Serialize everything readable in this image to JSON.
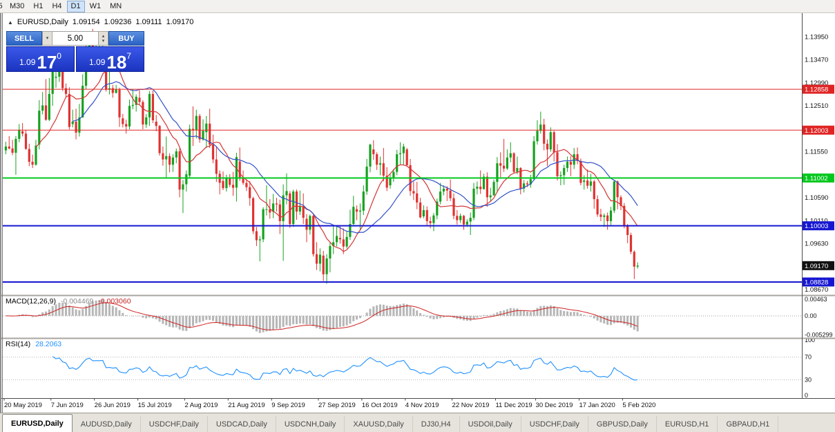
{
  "toolbar": {
    "timeframes": [
      "5",
      "M30",
      "H1",
      "H4",
      "D1",
      "W1",
      "MN"
    ],
    "active": "D1"
  },
  "header": {
    "collapse_icon": "▲",
    "symbol_period": "EURUSD,Daily",
    "open": "1.09154",
    "high": "1.09236",
    "low": "1.09111",
    "close": "1.09170"
  },
  "one_click": {
    "sell_label": "SELL",
    "buy_label": "BUY",
    "lot": "5.00",
    "bid_small": "1.09",
    "bid_big": "17",
    "bid_sup": "0",
    "ask_small": "1.09",
    "ask_big": "18",
    "ask_sup": "7"
  },
  "tabbar": {
    "active_index": 0,
    "tabs": [
      "EURUSD,Daily",
      "AUDUSD,Daily",
      "USDCHF,Daily",
      "USDCAD,Daily",
      "USDCNH,Daily",
      "XAUUSD,Daily",
      "DJ30,H4",
      "USDOil,Daily",
      "USDCHF,Daily",
      "GBPUSD,Daily",
      "EURUSD,H1",
      "GBPAUD,H1"
    ]
  },
  "chart_data": {
    "type": "candlestick",
    "symbol": "EURUSD",
    "timeframe": "Daily",
    "ylim": [
      1.0864,
      1.1442
    ],
    "up_color": "#16a120",
    "down_color": "#e03232",
    "yticks": [
      {
        "value": 1.1395,
        "label": "1.13950"
      },
      {
        "value": 1.1347,
        "label": "1.13470"
      },
      {
        "value": 1.1299,
        "label": "1.12990"
      },
      {
        "value": 1.1251,
        "label": "1.12510"
      },
      {
        "value": 1.1155,
        "label": "1.11550"
      },
      {
        "value": 1.1059,
        "label": "1.10590"
      },
      {
        "value": 1.1011,
        "label": "1.10110"
      },
      {
        "value": 1.0963,
        "label": "1.09630"
      },
      {
        "value": 1.0867,
        "label": "1.08670"
      }
    ],
    "hlines": [
      {
        "value": 1.12858,
        "label": "1.12858",
        "color": "#e02424",
        "width": 1
      },
      {
        "value": 1.12003,
        "label": "1.12003",
        "color": "#e02424",
        "width": 1
      },
      {
        "value": 1.11002,
        "label": "1.11002",
        "color": "#00c81e",
        "width": 2
      },
      {
        "value": 1.10003,
        "label": "1.10003",
        "color": "#1616d2",
        "width": 2
      },
      {
        "value": 1.08828,
        "label": "1.08828",
        "color": "#1616d2",
        "width": 2
      }
    ],
    "current_price": {
      "value": 1.0917,
      "label": "1.09170",
      "color": "#111111"
    },
    "ma": [
      {
        "period": 10,
        "color": "#d23434"
      },
      {
        "period": 21,
        "color": "#3050c8"
      }
    ],
    "x_labels": [
      {
        "text": "20 May 2019",
        "i": 0
      },
      {
        "text": "7 Jun 2019",
        "i": 14
      },
      {
        "text": "26 Jun 2019",
        "i": 27
      },
      {
        "text": "15 Jul 2019",
        "i": 40
      },
      {
        "text": "2 Aug 2019",
        "i": 54
      },
      {
        "text": "21 Aug 2019",
        "i": 67
      },
      {
        "text": "9 Sep 2019",
        "i": 80
      },
      {
        "text": "27 Sep 2019",
        "i": 94
      },
      {
        "text": "16 Oct 2019",
        "i": 107
      },
      {
        "text": "4 Nov 2019",
        "i": 120
      },
      {
        "text": "22 Nov 2019",
        "i": 134
      },
      {
        "text": "11 Dec 2019",
        "i": 147
      },
      {
        "text": "30 Dec 2019",
        "i": 159
      },
      {
        "text": "17 Jan 2020",
        "i": 172
      },
      {
        "text": "5 Feb 2020",
        "i": 185
      }
    ],
    "candles": [
      [
        1.1158,
        1.1176,
        1.115,
        1.1166
      ],
      [
        1.1166,
        1.1188,
        1.116,
        1.1162
      ],
      [
        1.1162,
        1.118,
        1.1148,
        1.1153
      ],
      [
        1.1153,
        1.1188,
        1.1107,
        1.1182
      ],
      [
        1.1182,
        1.1213,
        1.1175,
        1.1201
      ],
      [
        1.1198,
        1.1215,
        1.1187,
        1.1193
      ],
      [
        1.1193,
        1.1201,
        1.1159,
        1.1161
      ],
      [
        1.1161,
        1.1172,
        1.1125,
        1.1134
      ],
      [
        1.1134,
        1.1149,
        1.1121,
        1.1128
      ],
      [
        1.1128,
        1.118,
        1.1126,
        1.1168
      ],
      [
        1.117,
        1.1263,
        1.116,
        1.1241
      ],
      [
        1.1241,
        1.128,
        1.1233,
        1.1252
      ],
      [
        1.1252,
        1.1307,
        1.122,
        1.1222
      ],
      [
        1.1222,
        1.1309,
        1.1219,
        1.1276
      ],
      [
        1.1276,
        1.1348,
        1.1251,
        1.1334
      ],
      [
        1.131,
        1.1332,
        1.1289,
        1.1312
      ],
      [
        1.1312,
        1.1338,
        1.1301,
        1.1326
      ],
      [
        1.1326,
        1.1344,
        1.1282,
        1.1288
      ],
      [
        1.1288,
        1.1298,
        1.1268,
        1.1276
      ],
      [
        1.1276,
        1.129,
        1.1202,
        1.1207
      ],
      [
        1.1213,
        1.1243,
        1.1206,
        1.1218
      ],
      [
        1.1218,
        1.1245,
        1.1181,
        1.1195
      ],
      [
        1.1195,
        1.1255,
        1.1187,
        1.1227
      ],
      [
        1.1227,
        1.1317,
        1.1226,
        1.1293
      ],
      [
        1.1293,
        1.1378,
        1.1286,
        1.1369
      ],
      [
        1.1369,
        1.1405,
        1.1362,
        1.1399
      ],
      [
        1.1399,
        1.1412,
        1.1344,
        1.1367
      ],
      [
        1.1367,
        1.139,
        1.1348,
        1.1369
      ],
      [
        1.1369,
        1.1388,
        1.1356,
        1.1369
      ],
      [
        1.1369,
        1.1391,
        1.1358,
        1.1373
      ],
      [
        1.1364,
        1.1368,
        1.1281,
        1.1285
      ],
      [
        1.1285,
        1.1322,
        1.1275,
        1.1288
      ],
      [
        1.1288,
        1.1295,
        1.1268,
        1.1278
      ],
      [
        1.1278,
        1.1295,
        1.1277,
        1.1285
      ],
      [
        1.1285,
        1.1289,
        1.1207,
        1.1227
      ],
      [
        1.1225,
        1.1234,
        1.1206,
        1.1213
      ],
      [
        1.1213,
        1.1222,
        1.1193,
        1.1208
      ],
      [
        1.1208,
        1.1264,
        1.1202,
        1.1251
      ],
      [
        1.1251,
        1.1286,
        1.1244,
        1.1253
      ],
      [
        1.1253,
        1.1275,
        1.1239,
        1.127
      ],
      [
        1.1268,
        1.1284,
        1.1254,
        1.1259
      ],
      [
        1.1259,
        1.1263,
        1.1202,
        1.1212
      ],
      [
        1.1212,
        1.1234,
        1.1205,
        1.1227
      ],
      [
        1.1227,
        1.1282,
        1.1209,
        1.1276
      ],
      [
        1.1276,
        1.1283,
        1.1215,
        1.1221
      ],
      [
        1.1218,
        1.1232,
        1.1198,
        1.1209
      ],
      [
        1.1209,
        1.1211,
        1.1147,
        1.1152
      ],
      [
        1.1152,
        1.1166,
        1.1126,
        1.1139
      ],
      [
        1.1139,
        1.1187,
        1.1101,
        1.1146
      ],
      [
        1.1146,
        1.1152,
        1.1112,
        1.1128
      ],
      [
        1.1128,
        1.115,
        1.1113,
        1.1143
      ],
      [
        1.1143,
        1.1162,
        1.1131,
        1.1156
      ],
      [
        1.1156,
        1.1162,
        1.106,
        1.1076
      ],
      [
        1.1076,
        1.1096,
        1.1027,
        1.1087
      ],
      [
        1.1087,
        1.1116,
        1.1072,
        1.1108
      ],
      [
        1.1105,
        1.1212,
        1.1101,
        1.1203
      ],
      [
        1.1203,
        1.125,
        1.1167,
        1.12
      ],
      [
        1.12,
        1.1243,
        1.1183,
        1.123
      ],
      [
        1.123,
        1.1234,
        1.1174,
        1.1181
      ],
      [
        1.1181,
        1.1223,
        1.1178,
        1.1199
      ],
      [
        1.1196,
        1.123,
        1.1163,
        1.1214
      ],
      [
        1.1214,
        1.1245,
        1.1163,
        1.117
      ],
      [
        1.117,
        1.1191,
        1.1131,
        1.1139
      ],
      [
        1.1139,
        1.1166,
        1.1092,
        1.1109
      ],
      [
        1.1109,
        1.1116,
        1.1066,
        1.109
      ],
      [
        1.1094,
        1.1114,
        1.1075,
        1.1079
      ],
      [
        1.1079,
        1.1107,
        1.1072,
        1.11
      ],
      [
        1.11,
        1.1108,
        1.1081,
        1.1086
      ],
      [
        1.1086,
        1.1113,
        1.1063,
        1.108
      ],
      [
        1.108,
        1.1153,
        1.1051,
        1.1144
      ],
      [
        1.1135,
        1.1164,
        1.1094,
        1.1101
      ],
      [
        1.1101,
        1.1116,
        1.1086,
        1.109
      ],
      [
        1.109,
        1.1098,
        1.1073,
        1.1081
      ],
      [
        1.1081,
        1.1094,
        1.1042,
        1.1058
      ],
      [
        1.1058,
        1.1061,
        1.0983,
        1.0989
      ],
      [
        1.0989,
        1.0998,
        1.0958,
        1.097
      ],
      [
        1.097,
        1.0979,
        1.0926,
        1.0972
      ],
      [
        1.0972,
        1.1039,
        1.0966,
        1.1035
      ],
      [
        1.1035,
        1.1085,
        1.1022,
        1.1035
      ],
      [
        1.1035,
        1.1056,
        1.1015,
        1.1028
      ],
      [
        1.103,
        1.1067,
        1.1016,
        1.1047
      ],
      [
        1.1047,
        1.1059,
        1.103,
        1.1045
      ],
      [
        1.1045,
        1.1055,
        1.0983,
        1.101
      ],
      [
        1.101,
        1.1087,
        1.0927,
        1.1064
      ],
      [
        1.1064,
        1.111,
        1.1045,
        1.1073
      ],
      [
        1.1068,
        1.1073,
        1.0996,
        1.1004
      ],
      [
        1.1004,
        1.1076,
        1.0998,
        1.1072
      ],
      [
        1.1072,
        1.1076,
        1.1013,
        1.103
      ],
      [
        1.103,
        1.1074,
        1.1023,
        1.1041
      ],
      [
        1.1041,
        1.1068,
        1.1004,
        1.1017
      ],
      [
        1.1015,
        1.1025,
        1.0966,
        1.0992
      ],
      [
        1.0992,
        1.1024,
        1.0982,
        1.1021
      ],
      [
        1.1021,
        1.1024,
        1.0936,
        1.0941
      ],
      [
        1.0941,
        1.0966,
        1.0908,
        1.0921
      ],
      [
        1.0921,
        1.0953,
        1.0905,
        1.094
      ],
      [
        1.0938,
        1.0948,
        1.0885,
        1.0899
      ],
      [
        1.0899,
        1.0941,
        1.0879,
        1.0932
      ],
      [
        1.0932,
        1.0965,
        1.0903,
        1.0958
      ],
      [
        1.0958,
        1.0999,
        1.0941,
        1.0966
      ],
      [
        1.0966,
        1.0999,
        1.0957,
        1.0979
      ],
      [
        1.0975,
        1.1,
        1.0963,
        1.0972
      ],
      [
        1.0972,
        1.0995,
        1.0941,
        1.0957
      ],
      [
        1.0957,
        1.0988,
        1.0953,
        1.0977
      ],
      [
        1.0977,
        1.1034,
        1.0971,
        1.1004
      ],
      [
        1.1004,
        1.1063,
        1.1002,
        1.104
      ],
      [
        1.1035,
        1.1043,
        1.1012,
        1.103
      ],
      [
        1.103,
        1.1047,
        1.0991,
        1.1032
      ],
      [
        1.1032,
        1.1085,
        1.1023,
        1.1072
      ],
      [
        1.1072,
        1.114,
        1.1065,
        1.1124
      ],
      [
        1.1124,
        1.1172,
        1.1112,
        1.117
      ],
      [
        1.116,
        1.1179,
        1.1138,
        1.115
      ],
      [
        1.115,
        1.1154,
        1.1117,
        1.1128
      ],
      [
        1.1128,
        1.1145,
        1.1106,
        1.1131
      ],
      [
        1.1131,
        1.1163,
        1.1093,
        1.1105
      ],
      [
        1.1105,
        1.1123,
        1.1073,
        1.108
      ],
      [
        1.1085,
        1.1108,
        1.1078,
        1.1099
      ],
      [
        1.1099,
        1.1119,
        1.1092,
        1.1113
      ],
      [
        1.1113,
        1.1159,
        1.1106,
        1.115
      ],
      [
        1.115,
        1.1175,
        1.1129,
        1.1152
      ],
      [
        1.1152,
        1.1172,
        1.1128,
        1.1166
      ],
      [
        1.116,
        1.1163,
        1.1125,
        1.1127
      ],
      [
        1.1127,
        1.114,
        1.1063,
        1.1073
      ],
      [
        1.1073,
        1.1093,
        1.1054,
        1.1068
      ],
      [
        1.1068,
        1.1092,
        1.1035,
        1.1049
      ],
      [
        1.1049,
        1.1059,
        1.1016,
        1.1018
      ],
      [
        1.102,
        1.1043,
        1.1016,
        1.1033
      ],
      [
        1.1033,
        1.1041,
        1.1002,
        1.101
      ],
      [
        1.101,
        1.1019,
        1.0995,
        1.1006
      ],
      [
        1.1006,
        1.1027,
        1.0989,
        1.1022
      ],
      [
        1.1022,
        1.1057,
        1.1014,
        1.1051
      ],
      [
        1.1051,
        1.109,
        1.1045,
        1.1072
      ],
      [
        1.1072,
        1.1085,
        1.1064,
        1.1078
      ],
      [
        1.1078,
        1.1083,
        1.1052,
        1.1074
      ],
      [
        1.1074,
        1.1097,
        1.1052,
        1.1058
      ],
      [
        1.1058,
        1.1068,
        1.1014,
        1.1021
      ],
      [
        1.1021,
        1.1033,
        1.1003,
        1.1012
      ],
      [
        1.1012,
        1.1026,
        1.1006,
        1.1021
      ],
      [
        1.1021,
        1.1023,
        1.0992,
        1.1003
      ],
      [
        1.1003,
        1.1014,
        1.0998,
        1.1009
      ],
      [
        1.1009,
        1.1028,
        1.0981,
        1.1017
      ],
      [
        1.1017,
        1.109,
        1.1012,
        1.1078
      ],
      [
        1.1078,
        1.1093,
        1.1066,
        1.1082
      ],
      [
        1.1082,
        1.1116,
        1.1067,
        1.1077
      ],
      [
        1.1077,
        1.1109,
        1.1076,
        1.1103
      ],
      [
        1.1103,
        1.1112,
        1.104,
        1.106
      ],
      [
        1.106,
        1.108,
        1.1052,
        1.1064
      ],
      [
        1.1064,
        1.1097,
        1.1063,
        1.1092
      ],
      [
        1.1092,
        1.1144,
        1.107,
        1.1131
      ],
      [
        1.1131,
        1.1154,
        1.1102,
        1.1126
      ],
      [
        1.1126,
        1.1182,
        1.1113,
        1.112
      ],
      [
        1.112,
        1.116,
        1.1117,
        1.1143
      ],
      [
        1.1143,
        1.1175,
        1.1133,
        1.1152
      ],
      [
        1.1152,
        1.1154,
        1.111,
        1.1113
      ],
      [
        1.1113,
        1.1145,
        1.1108,
        1.1121
      ],
      [
        1.1121,
        1.1123,
        1.1066,
        1.1078
      ],
      [
        1.1078,
        1.1096,
        1.107,
        1.1089
      ],
      [
        1.1089,
        1.1094,
        1.1081,
        1.1087
      ],
      [
        1.1087,
        1.1107,
        1.108,
        1.1098
      ],
      [
        1.1098,
        1.1188,
        1.1096,
        1.1177
      ],
      [
        1.1177,
        1.1221,
        1.117,
        1.1199
      ],
      [
        1.1199,
        1.1239,
        1.1193,
        1.1212
      ],
      [
        1.1212,
        1.1224,
        1.1158,
        1.1172
      ],
      [
        1.1172,
        1.1181,
        1.1125,
        1.116
      ],
      [
        1.116,
        1.1206,
        1.1155,
        1.1196
      ],
      [
        1.1196,
        1.1199,
        1.1135,
        1.1154
      ],
      [
        1.1154,
        1.1171,
        1.1095,
        1.1104
      ],
      [
        1.1104,
        1.1114,
        1.1085,
        1.1106
      ],
      [
        1.1106,
        1.1128,
        1.1086,
        1.1121
      ],
      [
        1.1121,
        1.1145,
        1.1113,
        1.1134
      ],
      [
        1.1134,
        1.1146,
        1.1104,
        1.1128
      ],
      [
        1.1128,
        1.1163,
        1.1119,
        1.115
      ],
      [
        1.115,
        1.1164,
        1.1129,
        1.1136
      ],
      [
        1.1136,
        1.1141,
        1.1085,
        1.109
      ],
      [
        1.1092,
        1.1106,
        1.1076,
        1.1095
      ],
      [
        1.1095,
        1.1118,
        1.1078,
        1.1084
      ],
      [
        1.1084,
        1.1109,
        1.1072,
        1.1093
      ],
      [
        1.1093,
        1.1096,
        1.1036,
        1.1056
      ],
      [
        1.1056,
        1.1064,
        1.1019,
        1.1024
      ],
      [
        1.1024,
        1.1036,
        1.101,
        1.1019
      ],
      [
        1.1019,
        1.1026,
        1.0998,
        1.1022
      ],
      [
        1.1022,
        1.1028,
        1.0992,
        1.101
      ],
      [
        1.101,
        1.104,
        1.1002,
        1.1032
      ],
      [
        1.1032,
        1.1096,
        1.1027,
        1.1093
      ],
      [
        1.1093,
        1.1095,
        1.1035,
        1.106
      ],
      [
        1.106,
        1.1064,
        1.1033,
        1.1042
      ],
      [
        1.1042,
        1.1048,
        1.0995,
        1.1
      ],
      [
        1.1,
        1.1004,
        1.0964,
        1.0981
      ],
      [
        1.0981,
        1.0986,
        1.0941,
        1.0946
      ],
      [
        1.0946,
        1.0949,
        1.0889,
        1.0915
      ],
      [
        1.0915,
        1.0924,
        1.0911,
        1.0917
      ]
    ],
    "macd": {
      "title": "MACD(12,26,9)",
      "value_main": "-0.004469",
      "value_signal": "-0.003060",
      "fast": 12,
      "slow": 26,
      "signal": 9,
      "ylim": [
        -0.0058,
        0.0052
      ],
      "hist_color": "#b6b6b6",
      "line_color": "#d02020",
      "yticks": [
        {
          "v": 0.00463,
          "label": "0.00463"
        },
        {
          "v": 0,
          "label": "0.00"
        },
        {
          "v": -0.005299,
          "label": "-0.005299"
        }
      ]
    },
    "rsi": {
      "title": "RSI(14)",
      "value": "28.2063",
      "period": 14,
      "color": "#1e90ff",
      "levels": [
        70,
        30
      ],
      "yticks": [
        {
          "v": 100,
          "label": "100"
        },
        {
          "v": 70,
          "label": "70"
        },
        {
          "v": 30,
          "label": "30"
        },
        {
          "v": 0,
          "label": "0"
        }
      ]
    }
  }
}
